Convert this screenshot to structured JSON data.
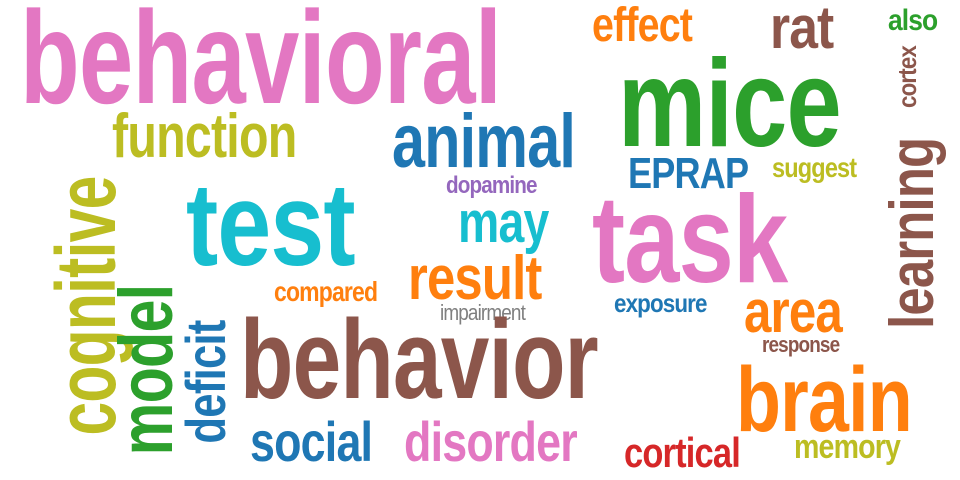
{
  "words": {
    "behavioral": {
      "text": "behavioral",
      "color": "#e377c2"
    },
    "effect": {
      "text": "effect",
      "color": "#ff7f0e"
    },
    "rat": {
      "text": "rat",
      "color": "#8c564b"
    },
    "also": {
      "text": "also",
      "color": "#2ca02c"
    },
    "cortex": {
      "text": "cortex",
      "color": "#8c564b"
    },
    "mice": {
      "text": "mice",
      "color": "#2ca02c"
    },
    "cognitive": {
      "text": "cognitive",
      "color": "#bcbd22"
    },
    "function": {
      "text": "function",
      "color": "#bcbd22"
    },
    "animal": {
      "text": "animal",
      "color": "#1f77b4"
    },
    "eprap": {
      "text": "EPRAP",
      "color": "#1f77b4"
    },
    "suggest": {
      "text": "suggest",
      "color": "#bcbd22"
    },
    "dopamine": {
      "text": "dopamine",
      "color": "#9467bd"
    },
    "test": {
      "text": "test",
      "color": "#17becf"
    },
    "may": {
      "text": "may",
      "color": "#17becf"
    },
    "task": {
      "text": "task",
      "color": "#e377c2"
    },
    "learning": {
      "text": "learning",
      "color": "#8c564b"
    },
    "model": {
      "text": "model",
      "color": "#2ca02c"
    },
    "deficit": {
      "text": "deficit",
      "color": "#1f77b4"
    },
    "result": {
      "text": "result",
      "color": "#ff7f0e"
    },
    "compared": {
      "text": "compared",
      "color": "#ff7f0e"
    },
    "exposure": {
      "text": "exposure",
      "color": "#1f77b4"
    },
    "area": {
      "text": "area",
      "color": "#ff7f0e"
    },
    "impairment": {
      "text": "impairment",
      "color": "#7f7f7f"
    },
    "behavior": {
      "text": "behavior",
      "color": "#8c564b"
    },
    "response": {
      "text": "response",
      "color": "#8c564b"
    },
    "brain": {
      "text": "brain",
      "color": "#ff7f0e"
    },
    "social": {
      "text": "social",
      "color": "#1f77b4"
    },
    "disorder": {
      "text": "disorder",
      "color": "#e377c2"
    },
    "cortical": {
      "text": "cortical",
      "color": "#d62728"
    },
    "memory": {
      "text": "memory",
      "color": "#bcbd22"
    }
  }
}
